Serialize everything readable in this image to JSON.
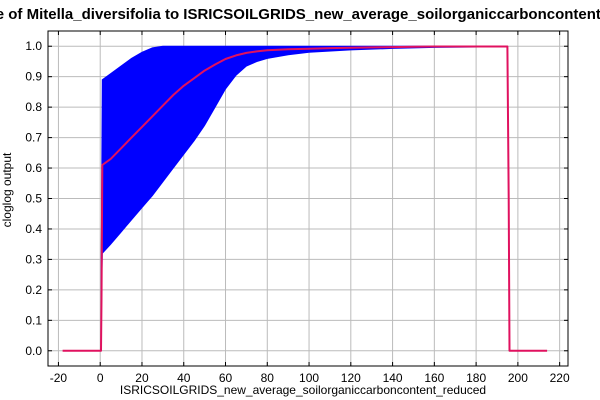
{
  "chart_data": {
    "type": "line",
    "title": "Response of Mitella_diversifolia to ISRICSOILGRIDS_new_average_soilorganiccarboncontent_reduced",
    "xlabel": "ISRICSOILGRIDS_new_average_soilorganiccarboncontent_reduced",
    "ylabel": "cloglog output",
    "xlim": [
      -25,
      224
    ],
    "ylim": [
      -0.05,
      1.05
    ],
    "xticks": [
      -20,
      0,
      20,
      40,
      60,
      80,
      100,
      120,
      140,
      160,
      180,
      200,
      220
    ],
    "yticks": [
      0.0,
      0.1,
      0.2,
      0.3,
      0.4,
      0.5,
      0.6,
      0.7,
      0.8,
      0.9,
      1.0
    ],
    "grid": true,
    "colors": {
      "mean_line": "#e0115f",
      "band": "#0000ff",
      "grid": "#bbbbbb"
    },
    "series": [
      {
        "role": "mean",
        "x": [
          -18,
          0.4,
          0.6,
          1,
          5,
          10,
          15,
          20,
          25,
          30,
          35,
          40,
          45,
          50,
          55,
          60,
          65,
          70,
          75,
          80,
          90,
          100,
          110,
          120,
          130,
          140,
          150,
          160,
          170,
          180,
          195,
          195.6,
          196,
          214
        ],
        "y": [
          0.0,
          0.0,
          0.17,
          0.61,
          0.63,
          0.665,
          0.7,
          0.735,
          0.77,
          0.805,
          0.84,
          0.87,
          0.895,
          0.92,
          0.94,
          0.958,
          0.97,
          0.978,
          0.983,
          0.987,
          0.99,
          0.992,
          0.994,
          0.995,
          0.996,
          0.997,
          0.998,
          0.999,
          0.999,
          0.999,
          0.999,
          0.5,
          0.0,
          0.0
        ]
      },
      {
        "role": "band-upper",
        "x": [
          0.5,
          1,
          5,
          10,
          15,
          20,
          25,
          30,
          35,
          40,
          45,
          50,
          55,
          60,
          65,
          70,
          75,
          80,
          90,
          100,
          120,
          140,
          160,
          195
        ],
        "y": [
          0.3,
          0.89,
          0.91,
          0.935,
          0.96,
          0.98,
          0.995,
          1.0,
          1.0,
          1.0,
          1.0,
          1.0,
          1.0,
          1.0,
          1.0,
          1.0,
          1.0,
          1.0,
          1.0,
          1.0,
          1.0,
          1.0,
          1.0,
          1.0
        ]
      },
      {
        "role": "band-lower",
        "x": [
          0.5,
          1,
          5,
          10,
          15,
          20,
          25,
          30,
          35,
          40,
          45,
          50,
          55,
          60,
          65,
          70,
          75,
          80,
          90,
          100,
          120,
          140,
          160,
          195
        ],
        "y": [
          0.15,
          0.32,
          0.35,
          0.39,
          0.43,
          0.47,
          0.51,
          0.555,
          0.6,
          0.645,
          0.69,
          0.74,
          0.8,
          0.86,
          0.905,
          0.935,
          0.95,
          0.96,
          0.972,
          0.98,
          0.988,
          0.993,
          0.996,
          0.998
        ]
      }
    ]
  }
}
